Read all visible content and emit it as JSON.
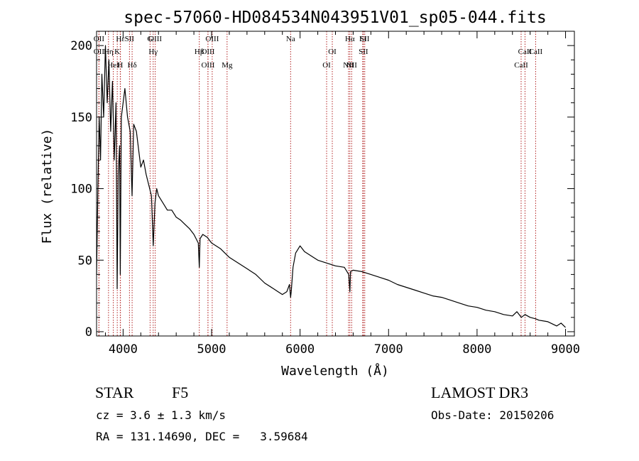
{
  "chart_data": {
    "type": "line",
    "title": "spec-57060-HD084534N043951V01_sp05-044.fits",
    "xlabel": "Wavelength (Å)",
    "ylabel": "Flux (relative)",
    "xlim": [
      3700,
      9100
    ],
    "ylim": [
      -3,
      210
    ],
    "x_ticks": [
      4000,
      5000,
      6000,
      7000,
      8000,
      9000
    ],
    "x_tick_labels": [
      "4000",
      "5000",
      "6000",
      "7000",
      "8000",
      "9000"
    ],
    "y_ticks": [
      0,
      50,
      100,
      150,
      200
    ],
    "y_tick_labels": [
      "0",
      "50",
      "100",
      "150",
      "200"
    ],
    "grid": false,
    "series": [
      {
        "name": "flux",
        "x": [
          3700,
          3715,
          3730,
          3745,
          3760,
          3780,
          3800,
          3820,
          3840,
          3860,
          3880,
          3900,
          3920,
          3933,
          3945,
          3960,
          3968,
          3980,
          4000,
          4020,
          4050,
          4080,
          4101,
          4120,
          4150,
          4180,
          4200,
          4230,
          4260,
          4280,
          4300,
          4320,
          4340,
          4360,
          4380,
          4400,
          4450,
          4500,
          4550,
          4600,
          4650,
          4700,
          4750,
          4800,
          4850,
          4861,
          4870,
          4900,
          4950,
          5000,
          5050,
          5100,
          5150,
          5200,
          5300,
          5400,
          5500,
          5600,
          5700,
          5750,
          5800,
          5850,
          5880,
          5893,
          5900,
          5920,
          5950,
          5980,
          6000,
          6050,
          6100,
          6150,
          6200,
          6300,
          6400,
          6500,
          6550,
          6563,
          6570,
          6600,
          6700,
          6800,
          6900,
          7000,
          7100,
          7200,
          7300,
          7400,
          7500,
          7600,
          7700,
          7800,
          7900,
          8000,
          8100,
          8200,
          8300,
          8400,
          8450,
          8500,
          8542,
          8600,
          8662,
          8700,
          8800,
          8900,
          8950,
          9000
        ],
        "y": [
          40,
          100,
          150,
          120,
          180,
          150,
          200,
          160,
          190,
          140,
          175,
          120,
          160,
          30,
          110,
          130,
          40,
          150,
          160,
          170,
          150,
          140,
          95,
          145,
          140,
          125,
          115,
          120,
          110,
          105,
          100,
          95,
          60,
          90,
          100,
          95,
          90,
          85,
          85,
          80,
          78,
          75,
          72,
          68,
          62,
          45,
          65,
          68,
          66,
          62,
          60,
          58,
          55,
          52,
          48,
          44,
          40,
          34,
          30,
          28,
          26,
          28,
          33,
          24,
          28,
          45,
          55,
          58,
          60,
          56,
          54,
          52,
          50,
          48,
          46,
          45,
          40,
          28,
          42,
          43,
          42,
          40,
          38,
          36,
          33,
          31,
          29,
          27,
          25,
          24,
          22,
          20,
          18,
          17,
          15,
          14,
          12,
          11,
          14,
          10,
          12,
          10,
          9,
          8,
          7,
          4,
          6,
          3
        ]
      }
    ],
    "line_markers": [
      {
        "label": "Hε",
        "wavelength": 3970
      },
      {
        "label": "K",
        "wavelength": 3934
      },
      {
        "label": "Hδ",
        "wavelength": 4102
      },
      {
        "label": "OIII",
        "wavelength": 4363
      },
      {
        "label": "OII",
        "wavelength": 3727
      },
      {
        "label": "HeI",
        "wavelength": 3889
      },
      {
        "label": "SII",
        "wavelength": 4072
      },
      {
        "label": "Hγ",
        "wavelength": 4340
      },
      {
        "label": "OIII",
        "wavelength": 4959
      },
      {
        "label": "OIII",
        "wavelength": 5007
      },
      {
        "label": "OIII",
        "wavelength": 4959
      },
      {
        "label": "OI",
        "wavelength": 6300
      },
      {
        "label": "Hα",
        "wavelength": 6563
      },
      {
        "label": "SII",
        "wavelength": 6716
      },
      {
        "label": "NII",
        "wavelength": 6548
      },
      {
        "label": "Li",
        "wavelength": 6708
      },
      {
        "label": "CaII",
        "wavelength": 8542
      },
      {
        "label": "CaII",
        "wavelength": 8498
      },
      {
        "label": "OII",
        "wavelength": 3727
      },
      {
        "label": "Hη",
        "wavelength": 3835
      },
      {
        "label": "H",
        "wavelength": 3968
      },
      {
        "label": "G",
        "wavelength": 4305
      },
      {
        "label": "Hβ",
        "wavelength": 4861
      },
      {
        "label": "Mg",
        "wavelength": 5175
      },
      {
        "label": "Na",
        "wavelength": 5893
      },
      {
        "label": "OI",
        "wavelength": 6364
      },
      {
        "label": "NII",
        "wavelength": 6583
      },
      {
        "label": "SII",
        "wavelength": 6731
      },
      {
        "label": "CaII",
        "wavelength": 8662
      }
    ]
  },
  "info": {
    "object_class": "STAR",
    "subclass": "F5",
    "cz": "cz = 3.6 ± 1.3 km/s",
    "coords": "RA = 131.14690, DEC =   3.59684",
    "survey": "LAMOST DR3",
    "obs_date": "Obs-Date: 20150206"
  },
  "colors": {
    "line": "#000000",
    "marker": "#b22222",
    "background": "#ffffff"
  }
}
